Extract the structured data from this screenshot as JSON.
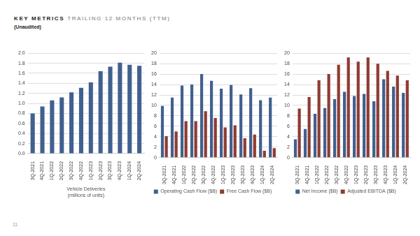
{
  "header": {
    "title": "KEY METRICS",
    "subtitle": "TRAILING 12 MONTHS (TTM)",
    "note": "(Unaudited)"
  },
  "page_number": 11,
  "chart_data": [
    {
      "type": "bar",
      "x_label": [
        "Vehicle Deliveries",
        "(millions of units)"
      ],
      "categories": [
        "3Q-2021",
        "4Q-2021",
        "1Q-2022",
        "2Q-2022",
        "3Q-2022",
        "4Q-2022",
        "1Q-2023",
        "2Q-2023",
        "3Q-2023",
        "4Q-2023",
        "1Q-2024",
        "2Q-2024"
      ],
      "values": [
        0.8,
        0.94,
        1.06,
        1.12,
        1.22,
        1.31,
        1.42,
        1.64,
        1.73,
        1.81,
        1.77,
        1.75
      ],
      "color": "#41608f",
      "ylim": [
        0,
        2.0
      ],
      "yticks": [
        {
          "value": 0,
          "label": "0.0"
        },
        {
          "value": 0.2,
          "label": "0.2"
        },
        {
          "value": 0.4,
          "label": "0.4"
        },
        {
          "value": 0.6,
          "label": "0.6"
        },
        {
          "value": 0.8,
          "label": "0.8"
        },
        {
          "value": 1.0,
          "label": "1.0"
        },
        {
          "value": 1.2,
          "label": "1.2"
        },
        {
          "value": 1.4,
          "label": "1.4"
        },
        {
          "value": 1.6,
          "label": "1.6"
        },
        {
          "value": 1.8,
          "label": "1.8"
        },
        {
          "value": 2.0,
          "label": "2.0"
        }
      ],
      "grid": true
    },
    {
      "type": "bar",
      "categories": [
        "3Q-2021",
        "4Q-2021",
        "1Q-2022",
        "2Q-2022",
        "3Q-2022",
        "4Q-2022",
        "1Q-2023",
        "2Q-2023",
        "3Q-2023",
        "4Q-2023",
        "1Q-2024",
        "2Q-2024"
      ],
      "series": [
        {
          "name": "Operating Cash Flow ($B)",
          "color": "#41608f",
          "values": [
            9.9,
            11.5,
            13.8,
            14.0,
            16.0,
            14.7,
            13.2,
            13.9,
            12.1,
            13.3,
            11.0,
            11.5
          ]
        },
        {
          "name": "Free Cash Flow ($B)",
          "color": "#8e3b32",
          "values": [
            4.1,
            5.0,
            7.0,
            7.0,
            8.9,
            7.6,
            5.8,
            6.2,
            3.7,
            4.4,
            1.3,
            1.8
          ]
        }
      ],
      "ylim": [
        0,
        20
      ],
      "yticks": [
        0,
        2,
        4,
        6,
        8,
        10,
        12,
        14,
        16,
        18,
        20
      ],
      "grid": true,
      "legend": "bottom"
    },
    {
      "type": "bar",
      "categories": [
        "3Q-2021",
        "4Q-2021",
        "1Q-2022",
        "2Q-2022",
        "3Q-2022",
        "4Q-2022",
        "1Q-2023",
        "2Q-2023",
        "3Q-2023",
        "4Q-2023",
        "1Q-2024",
        "2Q-2024"
      ],
      "series": [
        {
          "name": "Net Income ($B)",
          "color": "#41608f",
          "values": [
            3.5,
            5.5,
            8.4,
            9.5,
            11.2,
            12.6,
            11.8,
            12.2,
            10.8,
            15.0,
            13.6,
            12.4
          ]
        },
        {
          "name": "Adjusted EBITDA ($B)",
          "color": "#8e3b32",
          "values": [
            9.4,
            11.6,
            14.8,
            16.0,
            17.8,
            19.2,
            18.4,
            19.2,
            18.0,
            16.6,
            15.7,
            14.8
          ]
        }
      ],
      "ylim": [
        0,
        20
      ],
      "yticks": [
        0,
        2,
        4,
        6,
        8,
        10,
        12,
        14,
        16,
        18,
        20
      ],
      "grid": true,
      "legend": "bottom"
    }
  ]
}
